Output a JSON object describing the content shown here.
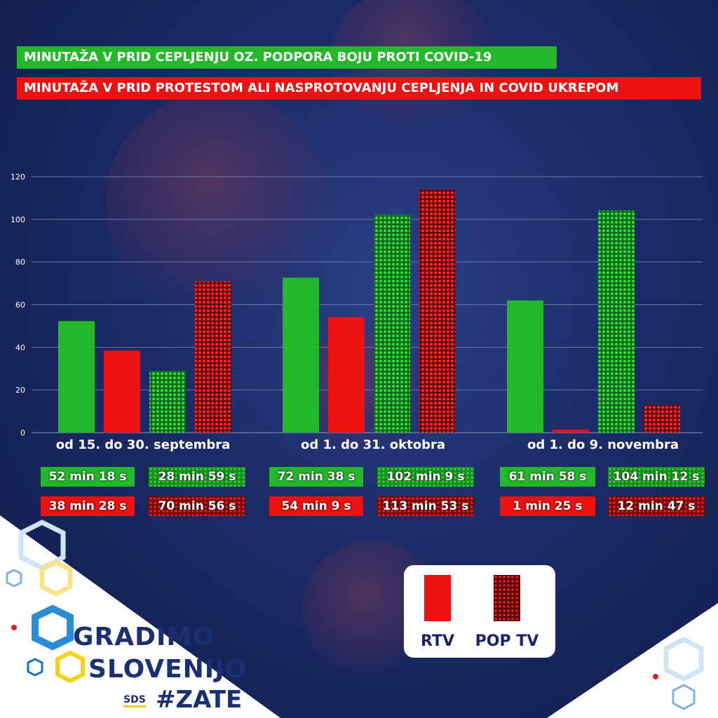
{
  "titles": {
    "line1": "MINUTAŽA V PRID CEPLJENJU OZ. PODPORA BOJU PROTI COVID-19",
    "line2": "MINUTAŽA V PRID PROTESTOM ALI NASPROTOVANJU CEPLJENJA IN COVID UKREPOM"
  },
  "colors": {
    "green": "#22b829",
    "red": "#ee1111",
    "navy": "#1b2f73"
  },
  "chart_data": {
    "type": "bar",
    "categories": [
      "od 15. do 30. septembra",
      "od 1. do 31. oktobra",
      "od 1. do 9. novembra"
    ],
    "ylim": [
      0,
      120
    ],
    "yticks": [
      0,
      20,
      40,
      60,
      80,
      100,
      120
    ],
    "grid": true,
    "series": [
      {
        "name": "RTV",
        "stance": "pro",
        "values": [
          52.3,
          72.63,
          61.97
        ],
        "labels": [
          "52 min 18 s",
          "72 min 38 s",
          "61 min 58 s"
        ]
      },
      {
        "name": "RTV",
        "stance": "contra",
        "values": [
          38.47,
          54.15,
          1.42
        ],
        "labels": [
          "38 min 28 s",
          "54 min 9 s",
          "1 min 25 s"
        ]
      },
      {
        "name": "POP TV",
        "stance": "pro",
        "values": [
          28.98,
          102.15,
          104.2
        ],
        "labels": [
          "28 min 59 s",
          "102 min 9 s",
          "104 min 12 s"
        ]
      },
      {
        "name": "POP TV",
        "stance": "contra",
        "values": [
          70.93,
          113.88,
          12.78
        ],
        "labels": [
          "70 min 56 s",
          "113 min 53 s",
          "12 min 47 s"
        ]
      }
    ]
  },
  "legend": {
    "items": [
      "RTV",
      "POP TV"
    ]
  },
  "brand": {
    "line1": "GRADIMO",
    "line2": "SLOVENIJO",
    "party": "SDS",
    "hashtag": "#ZATE"
  }
}
